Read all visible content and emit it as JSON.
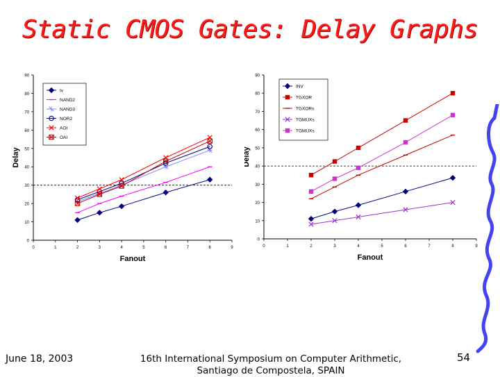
{
  "slide": {
    "title": "Static CMOS Gates: Delay Graphs",
    "date": "June 18, 2003",
    "conference_line1": "16th International Symposium on Computer Arithmetic,",
    "conference_line2": "Santiago de Compostela, SPAIN",
    "page_number": "54",
    "title_color": "#ff1a1a",
    "decoration_color": "#4444ee"
  },
  "chart_data": [
    {
      "type": "line",
      "xlabel": "Fanout",
      "ylabel": "Delay",
      "xlim": [
        0,
        9
      ],
      "ylim": [
        0,
        90
      ],
      "xticks": [
        0,
        1,
        2,
        3,
        4,
        5,
        6,
        7,
        8,
        9
      ],
      "yticks": [
        0,
        10,
        20,
        30,
        40,
        50,
        60,
        70,
        80,
        90
      ],
      "reference_line_y": 30,
      "legend_position": "top-left",
      "x": [
        2,
        3,
        4,
        6,
        8
      ],
      "series": [
        {
          "name": "Iv",
          "marker": "diamond",
          "color": "#000080",
          "values": [
            11,
            15,
            18.5,
            26,
            33
          ]
        },
        {
          "name": "NAND2",
          "marker": "dash",
          "color": "#ff00ff",
          "values": [
            15,
            20,
            24,
            31.5,
            40
          ]
        },
        {
          "name": "NAND3",
          "marker": "star",
          "color": "#8080ff",
          "values": [
            21,
            25.5,
            30,
            40,
            49
          ]
        },
        {
          "name": "NOR2",
          "marker": "circle",
          "color": "#000080",
          "values": [
            22,
            26.5,
            31,
            42,
            51
          ]
        },
        {
          "name": "AOI",
          "marker": "x",
          "color": "#ff0000",
          "values": [
            23,
            28,
            33,
            45,
            56
          ]
        },
        {
          "name": "OAI",
          "marker": "square-x",
          "color": "#c00000",
          "values": [
            20,
            25,
            29.5,
            43,
            54
          ]
        }
      ]
    },
    {
      "type": "line",
      "xlabel": "Fanout",
      "ylabel": "Delay",
      "xlim": [
        0,
        9
      ],
      "ylim": [
        0,
        90
      ],
      "xticks": [
        0,
        1,
        2,
        3,
        4,
        5,
        6,
        7,
        8,
        9
      ],
      "yticks": [
        0,
        10,
        20,
        30,
        40,
        50,
        60,
        70,
        80,
        90
      ],
      "reference_line_y": 40,
      "legend_position": "top-left",
      "x": [
        2,
        3,
        4,
        6,
        8
      ],
      "series": [
        {
          "name": "INV",
          "marker": "diamond",
          "color": "#000080",
          "values": [
            11,
            15,
            18.5,
            26,
            33.5
          ]
        },
        {
          "name": "TGXOR",
          "marker": "square",
          "color": "#cc0000",
          "values": [
            35,
            42.5,
            50,
            65,
            80
          ]
        },
        {
          "name": "TGXORs",
          "marker": "dash",
          "color": "#cc0000",
          "values": [
            22,
            28.5,
            35,
            46,
            57
          ]
        },
        {
          "name": "TGMUXs",
          "marker": "x",
          "color": "#9933cc",
          "values": [
            8,
            10,
            12,
            16,
            20
          ]
        },
        {
          "name": "TGMUXs",
          "marker": "square",
          "color": "#cc33cc",
          "values": [
            26,
            33,
            39,
            53,
            68
          ]
        }
      ]
    }
  ]
}
